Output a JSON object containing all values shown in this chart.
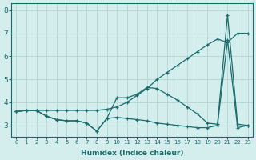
{
  "xlabel": "Humidex (Indice chaleur)",
  "bg_color": "#d4eeee",
  "grid_color": "#b8d8d8",
  "line_color": "#1a6b6b",
  "xlim": [
    -0.5,
    23.5
  ],
  "ylim": [
    2.5,
    8.3
  ],
  "xticks": [
    0,
    1,
    2,
    3,
    4,
    5,
    6,
    7,
    8,
    9,
    10,
    11,
    12,
    13,
    14,
    15,
    16,
    17,
    18,
    19,
    20,
    21,
    22,
    23
  ],
  "yticks": [
    3,
    4,
    5,
    6,
    7,
    8
  ],
  "line1_x": [
    0,
    1,
    2,
    3,
    4,
    5,
    6,
    7,
    8,
    9,
    10,
    11,
    12,
    13,
    14,
    15,
    16,
    17,
    18,
    19,
    20,
    21,
    22,
    23
  ],
  "line1_y": [
    3.6,
    3.65,
    3.65,
    3.65,
    3.65,
    3.65,
    3.65,
    3.65,
    3.65,
    3.7,
    3.8,
    4.0,
    4.3,
    4.6,
    5.0,
    5.3,
    5.6,
    5.9,
    6.2,
    6.5,
    6.75,
    6.6,
    7.0,
    7.0
  ],
  "line2_x": [
    0,
    1,
    2,
    3,
    4,
    5,
    6,
    7,
    8,
    9,
    10,
    11,
    12,
    13,
    14,
    15,
    16,
    17,
    18,
    19,
    20,
    21,
    22,
    23
  ],
  "line2_y": [
    3.6,
    3.65,
    3.65,
    3.4,
    3.25,
    3.2,
    3.2,
    3.1,
    2.75,
    3.3,
    4.2,
    4.2,
    4.35,
    4.65,
    4.6,
    4.35,
    4.1,
    3.8,
    3.5,
    3.1,
    3.05,
    7.8,
    3.05,
    3.0
  ],
  "line3_x": [
    0,
    1,
    2,
    3,
    4,
    5,
    6,
    7,
    8,
    9,
    10,
    11,
    12,
    13,
    14,
    15,
    16,
    17,
    18,
    19,
    20,
    21,
    22,
    23
  ],
  "line3_y": [
    3.6,
    3.65,
    3.65,
    3.4,
    3.25,
    3.2,
    3.2,
    3.1,
    2.75,
    3.3,
    3.35,
    3.3,
    3.25,
    3.2,
    3.1,
    3.05,
    3.0,
    2.95,
    2.9,
    2.9,
    3.0,
    6.7,
    2.9,
    3.0
  ]
}
